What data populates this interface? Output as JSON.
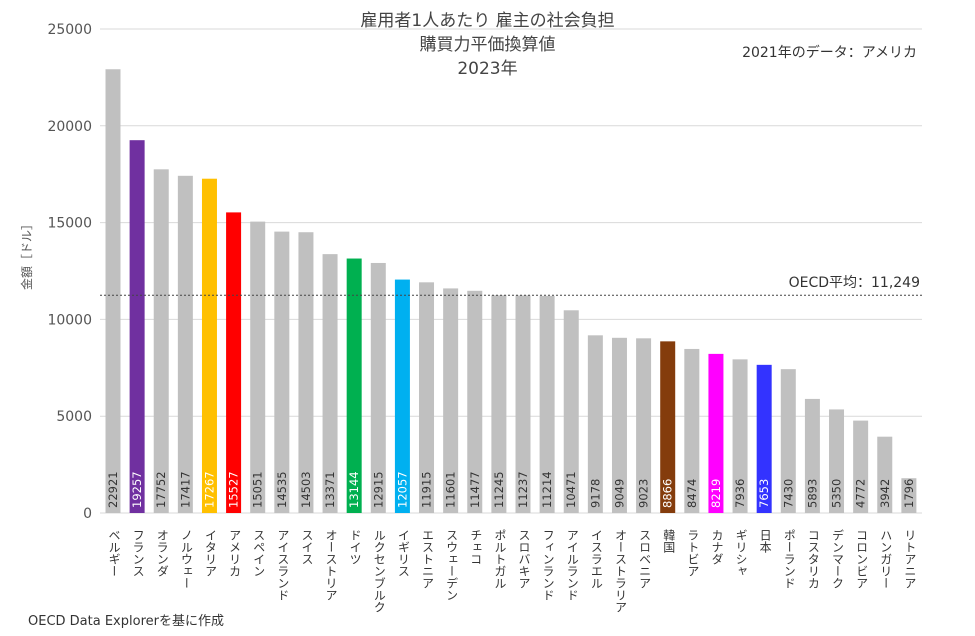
{
  "chart_data": {
    "type": "bar",
    "title": [
      "雇用者1人あたり 雇主の社会負担",
      "購買力平価換算値",
      "2023年"
    ],
    "note": "2021年のデータ：アメリカ",
    "ylabel": "金額［ドル］",
    "source": "OECD Data Explorerを基に作成",
    "ylim": [
      0,
      25000
    ],
    "yticks": [
      0,
      5000,
      10000,
      15000,
      20000,
      25000
    ],
    "reference_line": {
      "label": "OECD平均：11,249",
      "value": 11249
    },
    "grid": true,
    "categories": [
      "ベルギー",
      "フランス",
      "オランダ",
      "ノルウェー",
      "イタリア",
      "アメリカ",
      "スペイン",
      "アイスランド",
      "スイス",
      "オーストリア",
      "ドイツ",
      "ルクセンブルク",
      "イギリス",
      "エストニア",
      "スウェーデン",
      "チェコ",
      "ポルトガル",
      "スロバキア",
      "フィンランド",
      "アイルランド",
      "イスラエル",
      "オーストラリア",
      "スロベニア",
      "韓国",
      "ラトビア",
      "カナダ",
      "ギリシャ",
      "日本",
      "ポーランド",
      "コスタリカ",
      "デンマーク",
      "コロンビア",
      "ハンガリー",
      "リトアニア"
    ],
    "values": [
      22921,
      19257,
      17752,
      17417,
      17267,
      15527,
      15051,
      14535,
      14503,
      13371,
      13144,
      12915,
      12057,
      11915,
      11601,
      11477,
      11245,
      11237,
      11214,
      10471,
      9178,
      9049,
      9023,
      8866,
      8474,
      8219,
      7936,
      7653,
      7430,
      5893,
      5350,
      4772,
      3942,
      1796
    ],
    "colors": [
      "#c0c0c0",
      "#7030a0",
      "#c0c0c0",
      "#c0c0c0",
      "#ffc000",
      "#ff0000",
      "#c0c0c0",
      "#c0c0c0",
      "#c0c0c0",
      "#c0c0c0",
      "#00b050",
      "#c0c0c0",
      "#00b0f0",
      "#c0c0c0",
      "#c0c0c0",
      "#c0c0c0",
      "#c0c0c0",
      "#c0c0c0",
      "#c0c0c0",
      "#c0c0c0",
      "#c0c0c0",
      "#c0c0c0",
      "#c0c0c0",
      "#843c0c",
      "#c0c0c0",
      "#ff00ff",
      "#c0c0c0",
      "#3333ff",
      "#c0c0c0",
      "#c0c0c0",
      "#c0c0c0",
      "#c0c0c0",
      "#c0c0c0",
      "#c0c0c0"
    ]
  }
}
